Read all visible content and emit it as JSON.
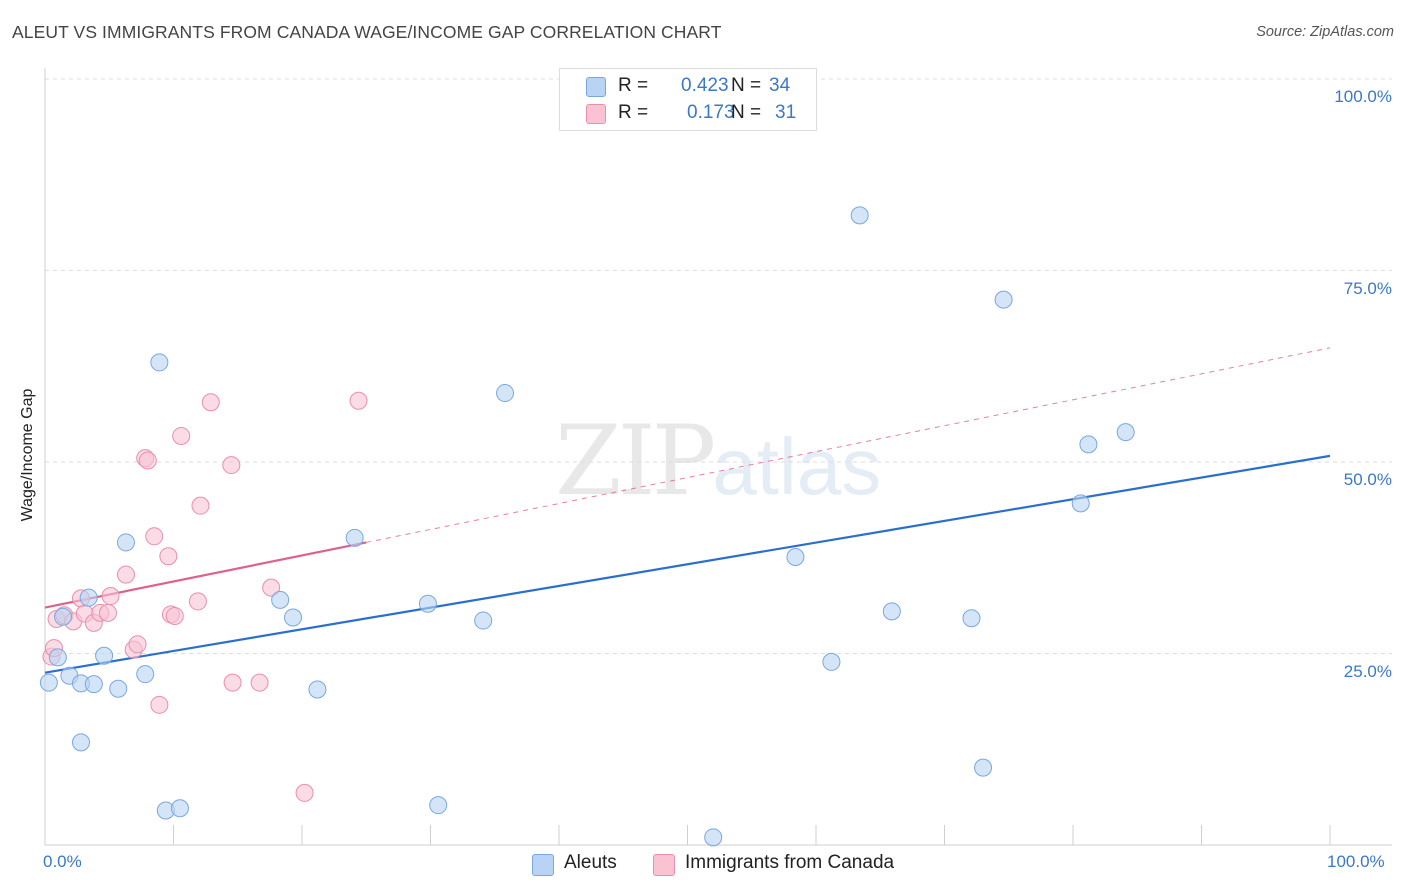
{
  "title": "ALEUT VS IMMIGRANTS FROM CANADA WAGE/INCOME GAP CORRELATION CHART",
  "source": "Source: ZipAtlas.com",
  "watermark": {
    "zip": "ZIP",
    "atlas": "atlas"
  },
  "legend": {
    "r_label": "R =",
    "n_label": "N =",
    "aleuts": {
      "r": "0.423",
      "n": "34"
    },
    "canada": {
      "r": "0.173",
      "n": "31"
    }
  },
  "bottom_legend": {
    "aleuts": "Aleuts",
    "canada": "Immigrants from Canada"
  },
  "colors": {
    "aleuts_fill": "#b8d3f4",
    "aleuts_stroke": "#7aa7e0",
    "aleuts_line": "#2a6fcf",
    "canada_fill": "#f9c3d3",
    "canada_stroke": "#e98fac",
    "canada_line": "#e0608a",
    "tick_text": "#3a78c9"
  },
  "chart_data": {
    "type": "scatter",
    "title": "ALEUT VS IMMIGRANTS FROM CANADA WAGE/INCOME GAP CORRELATION CHART",
    "xlabel": "",
    "ylabel": "Wage/Income Gap",
    "xlim": [
      0,
      100
    ],
    "ylim": [
      0,
      100
    ],
    "y_ticks": [
      {
        "value": 25,
        "label": "25.0%"
      },
      {
        "value": 50,
        "label": "50.0%"
      },
      {
        "value": 75,
        "label": "75.0%"
      },
      {
        "value": 100,
        "label": "100.0%"
      }
    ],
    "x_tick_labels": {
      "min": "0.0%",
      "max": "100.0%"
    },
    "series": [
      {
        "name": "Aleuts",
        "points": [
          [
            0.3,
            21.2
          ],
          [
            1.0,
            24.5
          ],
          [
            1.4,
            29.8
          ],
          [
            1.9,
            22.1
          ],
          [
            2.8,
            13.4
          ],
          [
            2.8,
            21.1
          ],
          [
            3.4,
            32.3
          ],
          [
            3.8,
            21.0
          ],
          [
            4.6,
            24.7
          ],
          [
            5.7,
            20.4
          ],
          [
            6.3,
            39.5
          ],
          [
            7.8,
            22.3
          ],
          [
            8.9,
            63.0
          ],
          [
            9.4,
            4.5
          ],
          [
            10.5,
            4.8
          ],
          [
            18.3,
            32.0
          ],
          [
            19.3,
            29.7
          ],
          [
            21.2,
            20.3
          ],
          [
            24.1,
            40.1
          ],
          [
            29.8,
            31.5
          ],
          [
            30.6,
            5.2
          ],
          [
            34.1,
            29.3
          ],
          [
            35.8,
            59.0
          ],
          [
            52.0,
            1.0
          ],
          [
            58.4,
            37.6
          ],
          [
            61.2,
            23.9
          ],
          [
            63.4,
            82.2
          ],
          [
            65.9,
            30.5
          ],
          [
            72.1,
            29.6
          ],
          [
            73.0,
            10.1
          ],
          [
            74.6,
            71.2
          ],
          [
            80.6,
            44.6
          ],
          [
            81.2,
            52.3
          ],
          [
            84.1,
            53.9
          ]
        ],
        "trend": {
          "x": [
            0,
            100
          ],
          "y": [
            22.5,
            50.8
          ],
          "style": "solid"
        }
      },
      {
        "name": "Immigrants from Canada",
        "points": [
          [
            0.5,
            24.6
          ],
          [
            0.9,
            29.5
          ],
          [
            1.5,
            30.0
          ],
          [
            2.2,
            29.2
          ],
          [
            2.8,
            32.2
          ],
          [
            3.1,
            30.2
          ],
          [
            3.8,
            29.0
          ],
          [
            4.3,
            30.3
          ],
          [
            4.9,
            30.3
          ],
          [
            5.1,
            32.5
          ],
          [
            6.3,
            35.3
          ],
          [
            6.9,
            25.5
          ],
          [
            7.2,
            26.2
          ],
          [
            7.8,
            50.5
          ],
          [
            8.0,
            50.2
          ],
          [
            8.5,
            40.3
          ],
          [
            8.9,
            18.3
          ],
          [
            9.6,
            37.7
          ],
          [
            9.8,
            30.1
          ],
          [
            10.1,
            29.9
          ],
          [
            10.6,
            53.4
          ],
          [
            11.9,
            31.8
          ],
          [
            12.1,
            44.3
          ],
          [
            12.9,
            57.8
          ],
          [
            14.5,
            49.6
          ],
          [
            14.6,
            21.2
          ],
          [
            16.7,
            21.2
          ],
          [
            17.6,
            33.6
          ],
          [
            20.2,
            6.8
          ],
          [
            24.4,
            58.0
          ],
          [
            0.7,
            25.7
          ]
        ],
        "trend": {
          "x": [
            0,
            25
          ],
          "y": [
            31.0,
            39.5
          ],
          "dashed_extension": {
            "x": [
              25,
              100
            ],
            "y": [
              39.5,
              64.9
            ]
          }
        }
      }
    ]
  }
}
